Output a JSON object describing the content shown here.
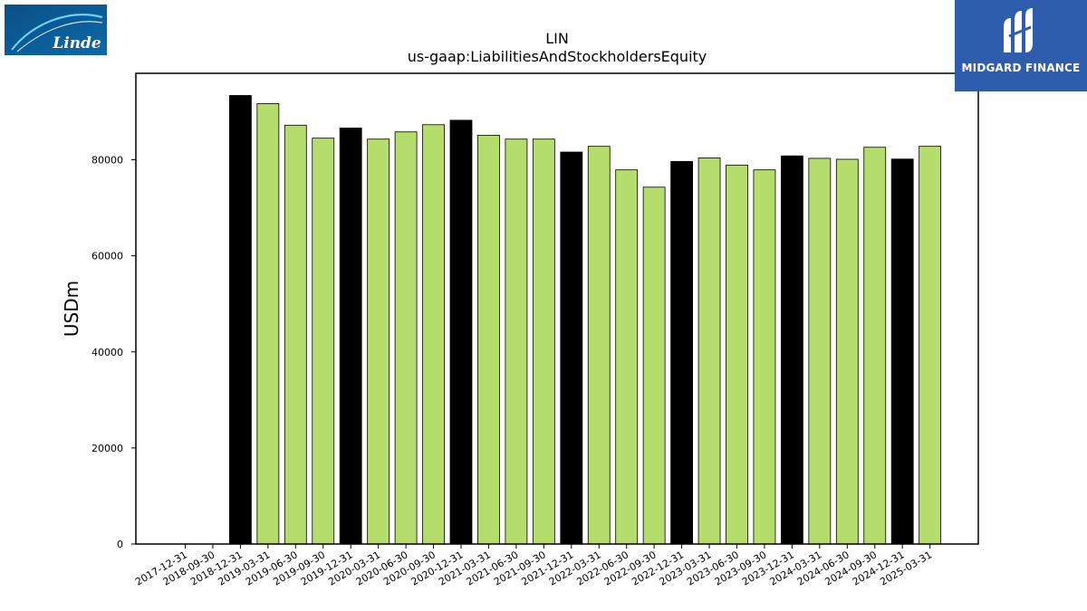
{
  "header": {
    "ticker": "LIN",
    "concept": "us-gaap:LiabilitiesAndStockholdersEquity"
  },
  "logos": {
    "left": {
      "name": "Linde",
      "text": "Linde",
      "bg_color": "#0d5c96"
    },
    "right": {
      "name": "Midgard Finance",
      "text": "MIDGARD FINANCE",
      "bg_color": "#2f5dae"
    }
  },
  "colors": {
    "annual": "#000000",
    "quarterly": "#b5dd6b",
    "edge": "#000000"
  },
  "chart_data": {
    "type": "bar",
    "title": "LIN\nus-gaap:LiabilitiesAndStockholdersEquity",
    "xlabel": "",
    "ylabel": "USDm",
    "ylim": [
      0,
      98000
    ],
    "yticks": [
      0,
      20000,
      40000,
      60000,
      80000
    ],
    "grid": false,
    "legend": "none",
    "categories": [
      "2017-12-31",
      "2018-09-30",
      "2018-12-31",
      "2019-03-31",
      "2019-06-30",
      "2019-09-30",
      "2019-12-31",
      "2020-03-31",
      "2020-06-30",
      "2020-09-30",
      "2020-12-31",
      "2021-03-31",
      "2021-06-30",
      "2021-09-30",
      "2021-12-31",
      "2022-03-31",
      "2022-06-30",
      "2022-09-30",
      "2022-12-31",
      "2023-03-31",
      "2023-06-30",
      "2023-09-30",
      "2023-12-31",
      "2024-03-31",
      "2024-06-30",
      "2024-09-30",
      "2024-12-31",
      "2025-03-31"
    ],
    "values": [
      null,
      null,
      93386,
      91700,
      87200,
      84500,
      86612,
      84300,
      85800,
      87300,
      88229,
      85100,
      84300,
      84300,
      81605,
      82800,
      77900,
      74300,
      79658,
      80400,
      78900,
      77900,
      80811,
      80300,
      80100,
      82600,
      80148,
      82800
    ],
    "period_type": [
      "annual",
      "quarterly",
      "annual",
      "quarterly",
      "quarterly",
      "quarterly",
      "annual",
      "quarterly",
      "quarterly",
      "quarterly",
      "annual",
      "quarterly",
      "quarterly",
      "quarterly",
      "annual",
      "quarterly",
      "quarterly",
      "quarterly",
      "annual",
      "quarterly",
      "quarterly",
      "quarterly",
      "annual",
      "quarterly",
      "quarterly",
      "quarterly",
      "annual",
      "quarterly"
    ]
  }
}
